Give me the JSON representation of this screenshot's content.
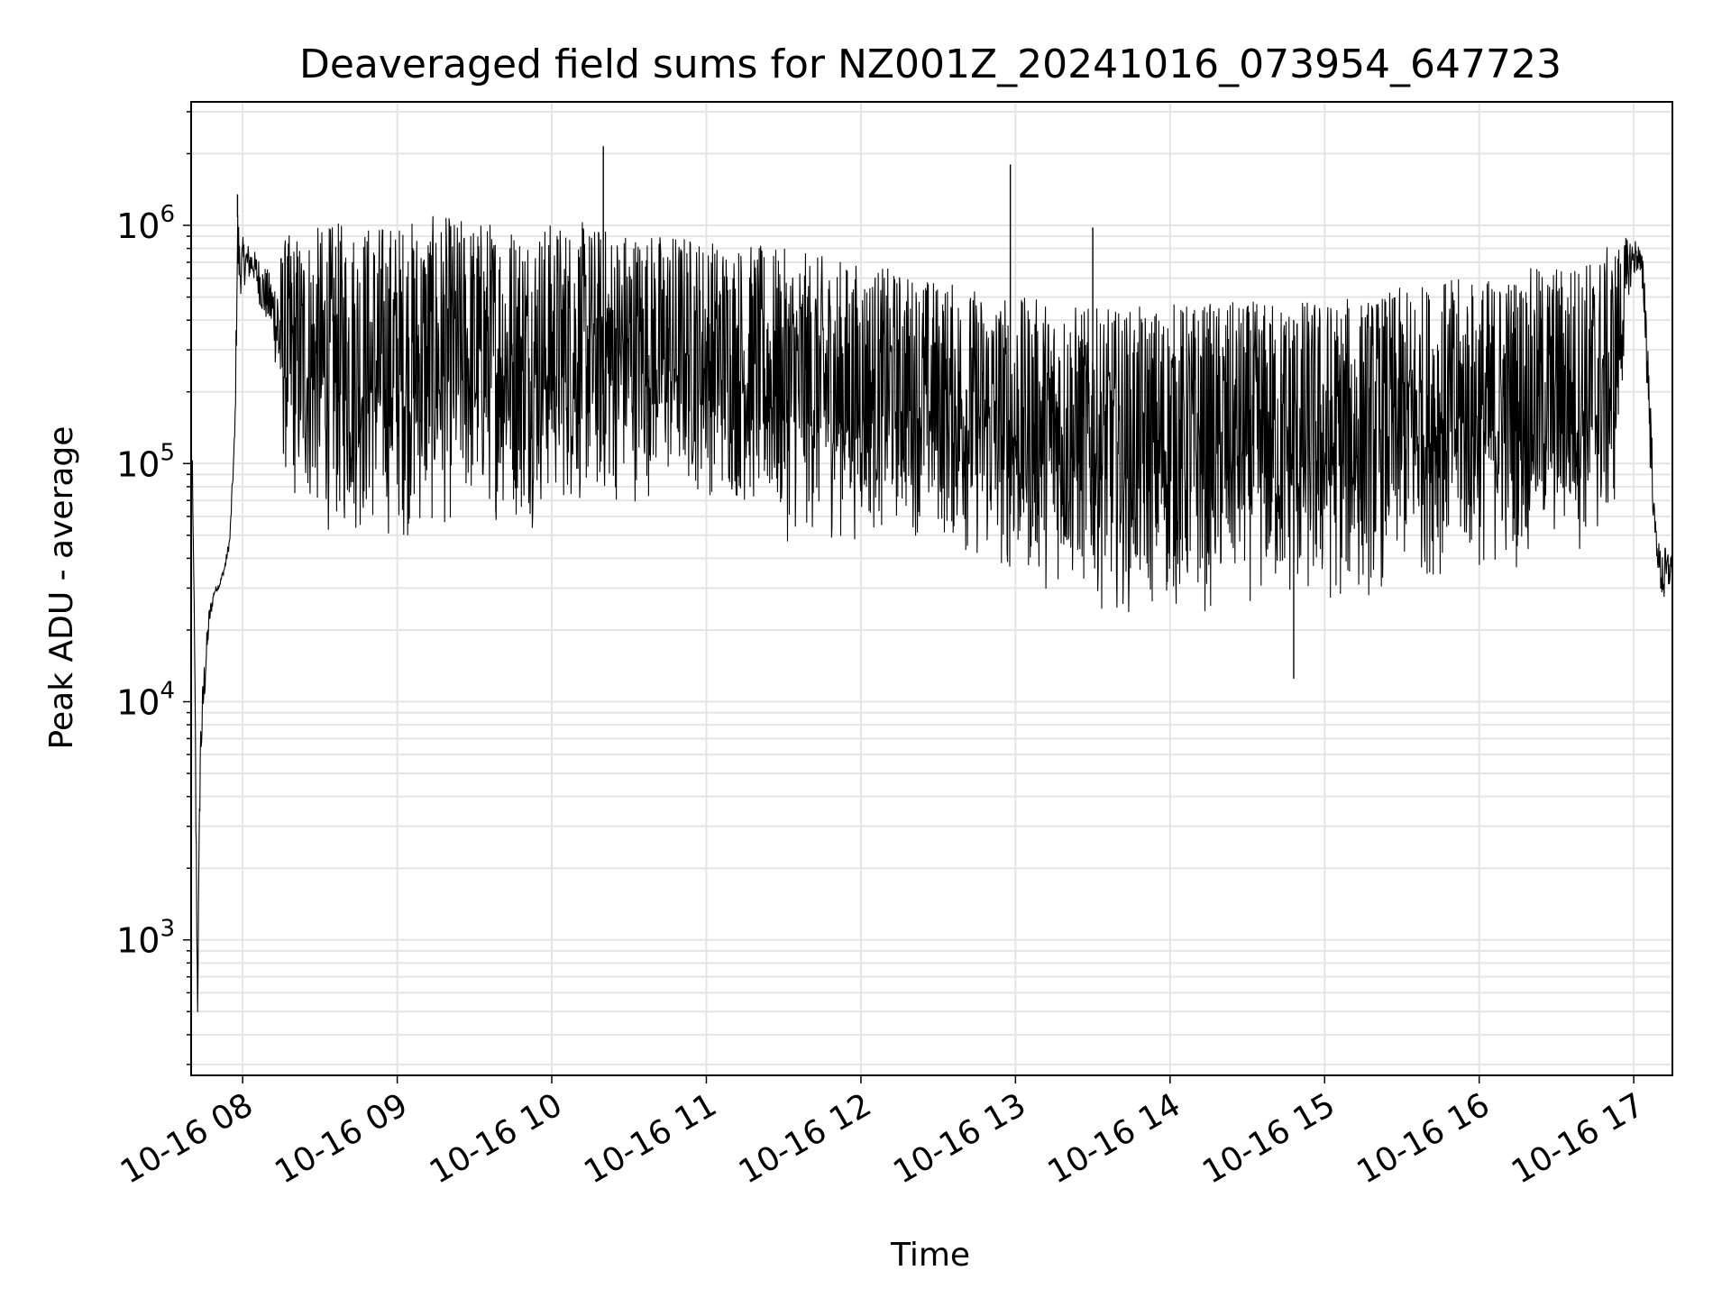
{
  "chart_data": {
    "type": "line",
    "title": "Deaveraged field sums for NZ001Z_20241016_073954_647723",
    "xlabel": "Time",
    "ylabel": "Peak ADU - average",
    "yscale": "log",
    "ylim": [
      270,
      3300000
    ],
    "xlim": [
      "2024-10-16T07:40:00",
      "2024-10-16T17:15:00"
    ],
    "grid": true,
    "legend": "none",
    "line_color": "#000000",
    "grid_color": "#e4e4e4",
    "x_tick_labels": [
      "10-16 08",
      "10-16 09",
      "10-16 10",
      "10-16 11",
      "10-16 12",
      "10-16 13",
      "10-16 14",
      "10-16 15",
      "10-16 16",
      "10-16 17"
    ],
    "y_tick_labels": [
      {
        "base": "10",
        "exp": "3",
        "value": 1000
      },
      {
        "base": "10",
        "exp": "4",
        "value": 10000
      },
      {
        "base": "10",
        "exp": "5",
        "value": 100000
      },
      {
        "base": "10",
        "exp": "6",
        "value": 1000000
      }
    ],
    "series": [
      {
        "x": [
          "2024-10-16T07:40:00",
          "2024-10-16T07:40:30",
          "2024-10-16T07:41:00",
          "2024-10-16T07:41:40",
          "2024-10-16T07:42:30",
          "2024-10-16T07:43:30",
          "2024-10-16T07:45:00",
          "2024-10-16T07:47:00",
          "2024-10-16T07:49:00",
          "2024-10-16T07:51:00",
          "2024-10-16T07:53:00",
          "2024-10-16T07:55:00",
          "2024-10-16T07:57:00",
          "2024-10-16T07:58:00",
          "2024-10-16T07:59:00",
          "2024-10-16T08:00:00",
          "2024-10-16T08:04:00",
          "2024-10-16T08:08:00",
          "2024-10-16T08:12:00",
          "2024-10-16T08:16:00",
          "2024-10-16T08:20:00",
          "2024-10-16T08:25:00",
          "2024-10-16T08:30:00",
          "2024-10-16T08:40:00",
          "2024-10-16T08:50:00",
          "2024-10-16T09:00:00",
          "2024-10-16T09:10:00",
          "2024-10-16T09:20:00",
          "2024-10-16T09:30:00",
          "2024-10-16T09:40:00",
          "2024-10-16T09:50:00",
          "2024-10-16T10:00:00",
          "2024-10-16T10:10:00",
          "2024-10-16T10:20:00",
          "2024-10-16T10:30:00",
          "2024-10-16T10:40:00",
          "2024-10-16T10:50:00",
          "2024-10-16T11:00:00",
          "2024-10-16T11:15:00",
          "2024-10-16T11:30:00",
          "2024-10-16T11:45:00",
          "2024-10-16T12:00:00",
          "2024-10-16T12:15:00",
          "2024-10-16T12:30:00",
          "2024-10-16T12:45:00",
          "2024-10-16T13:00:00",
          "2024-10-16T13:15:00",
          "2024-10-16T13:30:00",
          "2024-10-16T13:45:00",
          "2024-10-16T14:00:00",
          "2024-10-16T14:15:00",
          "2024-10-16T14:30:00",
          "2024-10-16T14:45:00",
          "2024-10-16T15:00:00",
          "2024-10-16T15:15:00",
          "2024-10-16T15:30:00",
          "2024-10-16T15:45:00",
          "2024-10-16T16:00:00",
          "2024-10-16T16:15:00",
          "2024-10-16T16:30:00",
          "2024-10-16T16:45:00",
          "2024-10-16T16:52:00",
          "2024-10-16T16:58:00",
          "2024-10-16T17:00:00",
          "2024-10-16T17:02:00",
          "2024-10-16T17:04:00",
          "2024-10-16T17:06:00",
          "2024-10-16T17:08:00",
          "2024-10-16T17:10:00",
          "2024-10-16T17:12:00",
          "2024-10-16T17:14:00",
          "2024-10-16T17:15:00"
        ],
        "low": [
          100000,
          40000,
          35000,
          3000,
          420,
          4000,
          9000,
          20000,
          28000,
          30000,
          35000,
          45000,
          120000,
          500000,
          500000,
          550000,
          600000,
          400000,
          300000,
          80000,
          60000,
          55000,
          50000,
          45000,
          45000,
          45000,
          45000,
          50000,
          55000,
          55000,
          50000,
          60000,
          60000,
          60000,
          65000,
          70000,
          70000,
          70000,
          60000,
          45000,
          45000,
          45000,
          50000,
          45000,
          35000,
          30000,
          28000,
          25000,
          22000,
          22000,
          22000,
          25000,
          22000,
          22000,
          25000,
          30000,
          32000,
          32000,
          35000,
          40000,
          40000,
          45000,
          500000,
          600000,
          650000,
          400000,
          100000,
          50000,
          30000,
          22000,
          30000,
          35000
        ],
        "high": [
          105000,
          105000,
          40000,
          10000,
          600,
          8000,
          15000,
          25000,
          30000,
          32000,
          38000,
          50000,
          150000,
          1350000,
          800000,
          900000,
          800000,
          700000,
          600000,
          900000,
          950000,
          980000,
          1000000,
          1050000,
          1050000,
          1050000,
          1100000,
          1100000,
          1080000,
          1080000,
          1050000,
          1050000,
          1050000,
          1000000,
          1000000,
          950000,
          950000,
          900000,
          850000,
          800000,
          750000,
          700000,
          650000,
          600000,
          550000,
          500000,
          500000,
          450000,
          450000,
          480000,
          480000,
          480000,
          500000,
          500000,
          500000,
          550000,
          600000,
          600000,
          650000,
          700000,
          750000,
          850000,
          900000,
          900000,
          850000,
          700000,
          300000,
          65000,
          45000,
          45000,
          45000,
          40000
        ]
      }
    ],
    "annotated_spikes": [
      {
        "x": "2024-10-16T07:58:00",
        "y": 1350000
      },
      {
        "x": "2024-10-16T10:20:00",
        "y": 2150000
      },
      {
        "x": "2024-10-16T12:58:00",
        "y": 1800000
      },
      {
        "x": "2024-10-16T13:30:00",
        "y": 980000
      },
      {
        "x": "2024-10-16T14:48:00",
        "y": 12500
      }
    ]
  }
}
